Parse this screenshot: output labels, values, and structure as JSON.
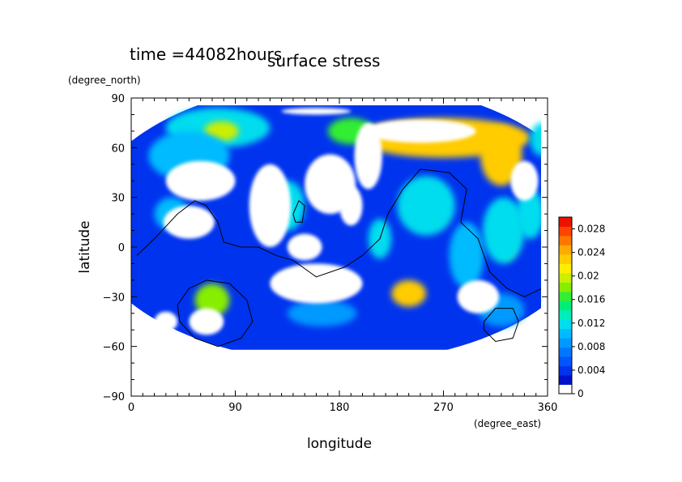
{
  "chart_data": {
    "type": "heatmap",
    "time_label": "time =44082hours",
    "title": "surface stress",
    "xlabel": "longitude",
    "ylabel": "latitude",
    "xunit": "(degree_east)",
    "yunit": "(degree_north)",
    "xlim": [
      0,
      360
    ],
    "ylim": [
      -90,
      90
    ],
    "xticks": [
      "0",
      "90",
      "180",
      "270",
      "360"
    ],
    "yticks": [
      "90",
      "60",
      "30",
      "0",
      "−30",
      "−60",
      "−90"
    ],
    "xtick_values": [
      0,
      90,
      180,
      270,
      360
    ],
    "ytick_values": [
      90,
      60,
      30,
      0,
      -30,
      -60,
      -90
    ],
    "colorbar": {
      "min": 0,
      "max": 0.03,
      "ticks": [
        "0",
        "0.004",
        "0.008",
        "0.012",
        "0.016",
        "0.02",
        "0.024",
        "0.028"
      ],
      "tick_values": [
        0,
        0.004,
        0.008,
        0.012,
        0.016,
        0.02,
        0.024,
        0.028
      ],
      "colors": [
        "#ffffff",
        "#0011cc",
        "#0033ee",
        "#0055ff",
        "#0077ff",
        "#0099ff",
        "#00bbff",
        "#00ddee",
        "#00eebb",
        "#00ee77",
        "#33ee33",
        "#88ee00",
        "#ccee00",
        "#ffee00",
        "#ffcc00",
        "#ffaa00",
        "#ff7700",
        "#ff4400",
        "#ee1100"
      ]
    },
    "blobs": [
      {
        "lon": 180,
        "lat": 15,
        "value": 0.004,
        "rx": 220,
        "ry": 85
      },
      {
        "lon": 75,
        "lat": 72,
        "value": 0.012,
        "rx": 45,
        "ry": 12
      },
      {
        "lon": 78,
        "lat": 70,
        "value": 0.02,
        "rx": 15,
        "ry": 6
      },
      {
        "lon": 270,
        "lat": 66,
        "value": 0.024,
        "rx": 75,
        "ry": 12
      },
      {
        "lon": 320,
        "lat": 55,
        "value": 0.024,
        "rx": 18,
        "ry": 18
      },
      {
        "lon": 325,
        "lat": 5,
        "value": 0.024,
        "rx": 8,
        "ry": 12
      },
      {
        "lon": 322,
        "lat": 10,
        "value": 0.012,
        "rx": 18,
        "ry": 20
      },
      {
        "lon": 240,
        "lat": -28,
        "value": 0.024,
        "rx": 15,
        "ry": 8
      },
      {
        "lon": 70,
        "lat": -32,
        "value": 0.018,
        "rx": 15,
        "ry": 10
      },
      {
        "lon": 255,
        "lat": 25,
        "value": 0.012,
        "rx": 25,
        "ry": 18
      },
      {
        "lon": 135,
        "lat": 25,
        "value": 0.012,
        "rx": 15,
        "ry": 15
      },
      {
        "lon": 35,
        "lat": 20,
        "value": 0.01,
        "rx": 15,
        "ry": 10
      },
      {
        "lon": 215,
        "lat": 5,
        "value": 0.012,
        "rx": 10,
        "ry": 12
      },
      {
        "lon": 345,
        "lat": 20,
        "value": 0.012,
        "rx": 12,
        "ry": 15
      },
      {
        "lon": 165,
        "lat": -40,
        "value": 0.008,
        "rx": 30,
        "ry": 8
      },
      {
        "lon": 320,
        "lat": -38,
        "value": 0.008,
        "rx": 20,
        "ry": 10
      },
      {
        "lon": 190,
        "lat": 70,
        "value": 0.016,
        "rx": 20,
        "ry": 8
      },
      {
        "lon": 355,
        "lat": 65,
        "value": 0.012,
        "rx": 10,
        "ry": 10
      },
      {
        "lon": 50,
        "lat": 55,
        "value": 0.01,
        "rx": 35,
        "ry": 15
      },
      {
        "lon": 290,
        "lat": -5,
        "value": 0.01,
        "rx": 15,
        "ry": 20
      }
    ],
    "blank_areas": [
      {
        "lon": 250,
        "lat": 70,
        "rx": 48,
        "ry": 7
      },
      {
        "lon": 160,
        "lat": 82,
        "rx": 30,
        "ry": 2
      },
      {
        "lon": 60,
        "lat": 40,
        "rx": 30,
        "ry": 12
      },
      {
        "lon": 50,
        "lat": 15,
        "rx": 22,
        "ry": 10
      },
      {
        "lon": 120,
        "lat": 25,
        "rx": 18,
        "ry": 25
      },
      {
        "lon": 172,
        "lat": 38,
        "rx": 22,
        "ry": 18
      },
      {
        "lon": 205,
        "lat": 55,
        "rx": 12,
        "ry": 20
      },
      {
        "lon": 190,
        "lat": 25,
        "rx": 10,
        "ry": 12
      },
      {
        "lon": 340,
        "lat": 40,
        "rx": 12,
        "ry": 12
      },
      {
        "lon": 65,
        "lat": -45,
        "rx": 15,
        "ry": 8
      },
      {
        "lon": 160,
        "lat": -22,
        "rx": 40,
        "ry": 12
      },
      {
        "lon": 30,
        "lat": -45,
        "rx": 10,
        "ry": 6
      },
      {
        "lon": 300,
        "lat": -30,
        "rx": 18,
        "ry": 10
      },
      {
        "lon": 150,
        "lat": 0,
        "rx": 15,
        "ry": 8
      }
    ],
    "south_cutoff_lat": -62,
    "contours": [
      [
        [
          5,
          -5
        ],
        [
          20,
          5
        ],
        [
          40,
          20
        ],
        [
          55,
          28
        ],
        [
          65,
          25
        ],
        [
          75,
          15
        ],
        [
          80,
          3
        ],
        [
          95,
          0
        ],
        [
          110,
          0
        ],
        [
          125,
          -5
        ],
        [
          140,
          -8
        ],
        [
          160,
          -18
        ],
        [
          185,
          -12
        ],
        [
          200,
          -5
        ],
        [
          215,
          5
        ],
        [
          222,
          20
        ],
        [
          235,
          35
        ],
        [
          250,
          47
        ],
        [
          275,
          45
        ],
        [
          290,
          35
        ],
        [
          285,
          15
        ],
        [
          300,
          5
        ],
        [
          310,
          -15
        ],
        [
          325,
          -25
        ],
        [
          340,
          -30
        ],
        [
          355,
          -25
        ]
      ],
      [
        [
          40,
          -35
        ],
        [
          50,
          -25
        ],
        [
          65,
          -20
        ],
        [
          85,
          -22
        ],
        [
          100,
          -32
        ],
        [
          105,
          -45
        ],
        [
          95,
          -55
        ],
        [
          75,
          -60
        ],
        [
          55,
          -55
        ],
        [
          42,
          -45
        ],
        [
          40,
          -35
        ]
      ],
      [
        [
          305,
          -45
        ],
        [
          315,
          -37
        ],
        [
          330,
          -37
        ],
        [
          335,
          -45
        ],
        [
          330,
          -55
        ],
        [
          315,
          -57
        ],
        [
          305,
          -50
        ],
        [
          305,
          -45
        ]
      ],
      [
        [
          140,
          20
        ],
        [
          145,
          28
        ],
        [
          150,
          25
        ],
        [
          148,
          15
        ],
        [
          142,
          15
        ],
        [
          140,
          20
        ]
      ]
    ]
  }
}
